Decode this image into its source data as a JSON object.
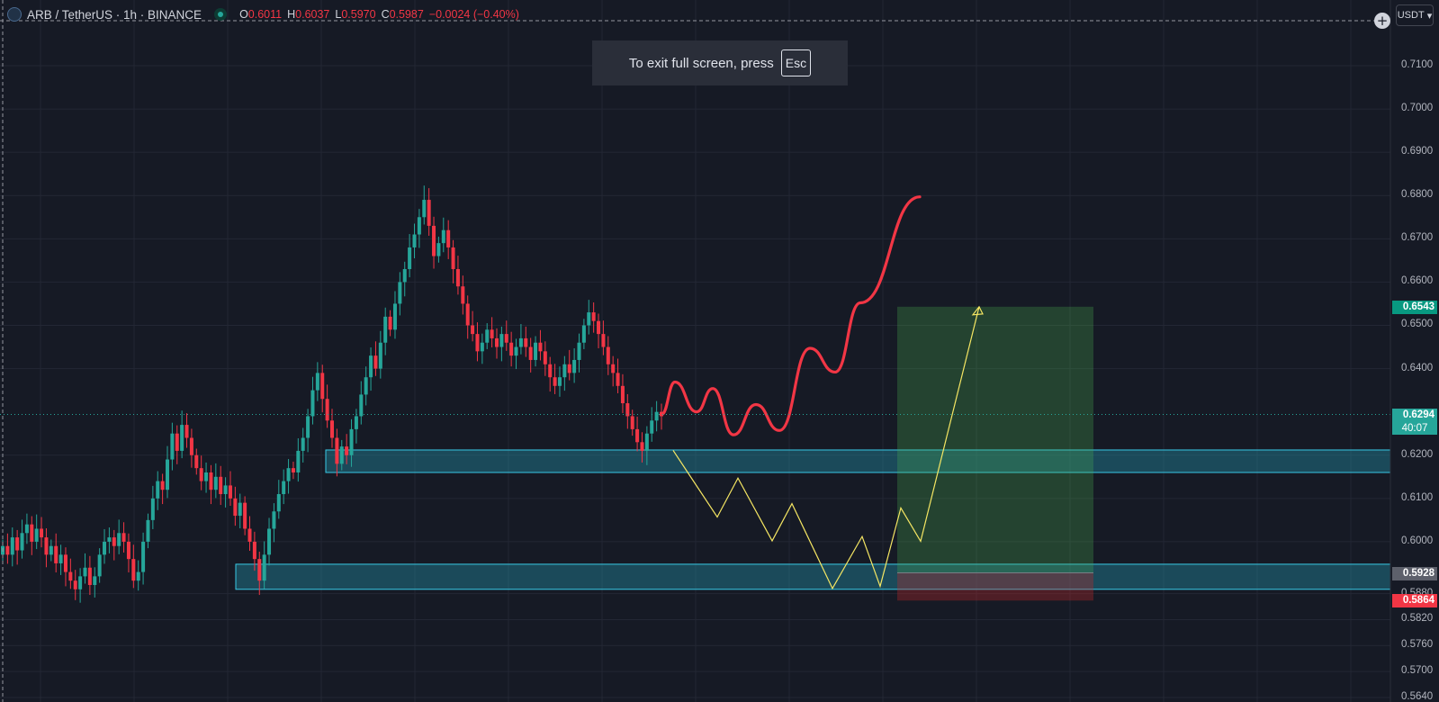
{
  "header": {
    "symbol": "ARB / TetherUS · 1h · BINANCE",
    "open_label": "O",
    "open": "0.6011",
    "high_label": "H",
    "high": "0.6037",
    "low_label": "L",
    "low": "0.5970",
    "close_label": "C",
    "close": "0.5987",
    "change": "−0.0024 (−0.40%)"
  },
  "toast": {
    "text": "To exit full screen, press",
    "key": "Esc"
  },
  "currency_button": "USDT",
  "colors": {
    "up": "#26a69a",
    "down": "#f23645",
    "background": "#161a25",
    "zone": "#1f7a8c",
    "target": "#4caf50",
    "stop": "#c62828",
    "path": "#f5e663"
  },
  "chart_data": {
    "type": "candlestick",
    "ylim": [
      0.5625,
      0.7207
    ],
    "y_ticks": [
      "0.7100",
      "0.7000",
      "0.6900",
      "0.6800",
      "0.6700",
      "0.6600",
      "0.6500",
      "0.6400",
      "0.6200",
      "0.6100",
      "0.6000",
      "0.5880",
      "0.5820",
      "0.5760",
      "0.5700",
      "0.5640"
    ],
    "price_labels": [
      {
        "value": "0.6543",
        "color": "#089981"
      },
      {
        "value": "0.6294",
        "color": "#26a69a",
        "timer": "40:07"
      },
      {
        "value": "0.5928",
        "color": "#5d606b"
      },
      {
        "value": "0.5864",
        "color": "#f23645"
      }
    ],
    "current_price": 0.6294,
    "candles_close": [
      0.599,
      0.597,
      0.601,
      0.598,
      0.602,
      0.604,
      0.6,
      0.603,
      0.601,
      0.597,
      0.599,
      0.595,
      0.597,
      0.593,
      0.591,
      0.589,
      0.592,
      0.594,
      0.59,
      0.592,
      0.597,
      0.6,
      0.601,
      0.599,
      0.602,
      0.6,
      0.596,
      0.591,
      0.593,
      0.6,
      0.605,
      0.61,
      0.614,
      0.612,
      0.619,
      0.625,
      0.621,
      0.627,
      0.624,
      0.62,
      0.617,
      0.614,
      0.616,
      0.612,
      0.615,
      0.611,
      0.613,
      0.61,
      0.606,
      0.609,
      0.603,
      0.6,
      0.596,
      0.591,
      0.597,
      0.603,
      0.607,
      0.611,
      0.614,
      0.617,
      0.616,
      0.621,
      0.624,
      0.629,
      0.635,
      0.639,
      0.633,
      0.628,
      0.624,
      0.618,
      0.622,
      0.62,
      0.626,
      0.629,
      0.634,
      0.638,
      0.643,
      0.64,
      0.646,
      0.652,
      0.649,
      0.655,
      0.66,
      0.663,
      0.668,
      0.671,
      0.675,
      0.679,
      0.673,
      0.666,
      0.669,
      0.672,
      0.668,
      0.663,
      0.659,
      0.655,
      0.65,
      0.648,
      0.644,
      0.646,
      0.649,
      0.647,
      0.645,
      0.648,
      0.646,
      0.643,
      0.645,
      0.647,
      0.645,
      0.642,
      0.646,
      0.644,
      0.641,
      0.638,
      0.636,
      0.638,
      0.641,
      0.639,
      0.642,
      0.646,
      0.65,
      0.653,
      0.651,
      0.648,
      0.645,
      0.641,
      0.639,
      0.636,
      0.632,
      0.629,
      0.626,
      0.623,
      0.621,
      0.625,
      0.628,
      0.63,
      0.629
    ],
    "zones": [
      {
        "top": 0.6212,
        "bottom": 0.616
      },
      {
        "top": 0.5948,
        "bottom": 0.589
      }
    ],
    "position": {
      "target": 0.6543,
      "entry": 0.5928,
      "stop": 0.5864
    },
    "projection_yellow": [
      0.6211,
      0.6057,
      0.6147,
      0.6002,
      0.6088,
      0.5892,
      0.6012,
      0.5897,
      0.6078,
      0.6001,
      0.6543
    ],
    "projection_red": [
      0.6294,
      0.6369,
      0.63,
      0.6354,
      0.6247,
      0.6317,
      0.6257,
      0.6447,
      0.6392,
      0.6552,
      0.6797
    ]
  }
}
